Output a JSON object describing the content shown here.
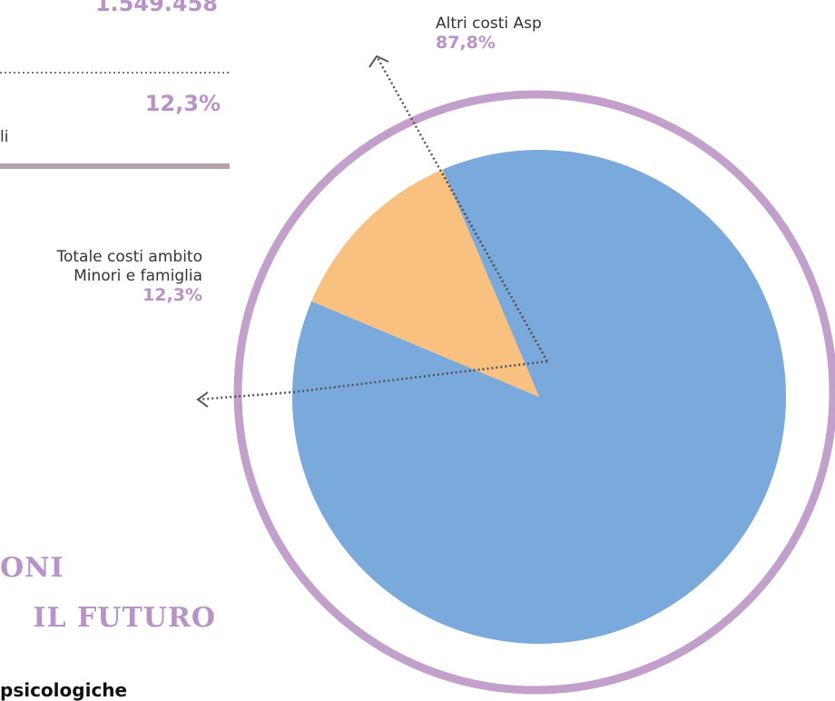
{
  "chart_data": {
    "type": "pie",
    "categories": [
      "Altri costi Asp",
      "Totale costi ambito\nMinori e famiglia"
    ],
    "values": [
      87.8,
      12.3
    ],
    "value_labels": [
      "87,8%",
      "12,3%"
    ],
    "colors": [
      "#7aaadb",
      "#f8c17f"
    ]
  },
  "page": {
    "total": "1.549.458",
    "share": "12,3%",
    "fragment": "li",
    "heading": [
      "ONI",
      "IL FUTURO"
    ],
    "subheading": "psicologiche"
  }
}
